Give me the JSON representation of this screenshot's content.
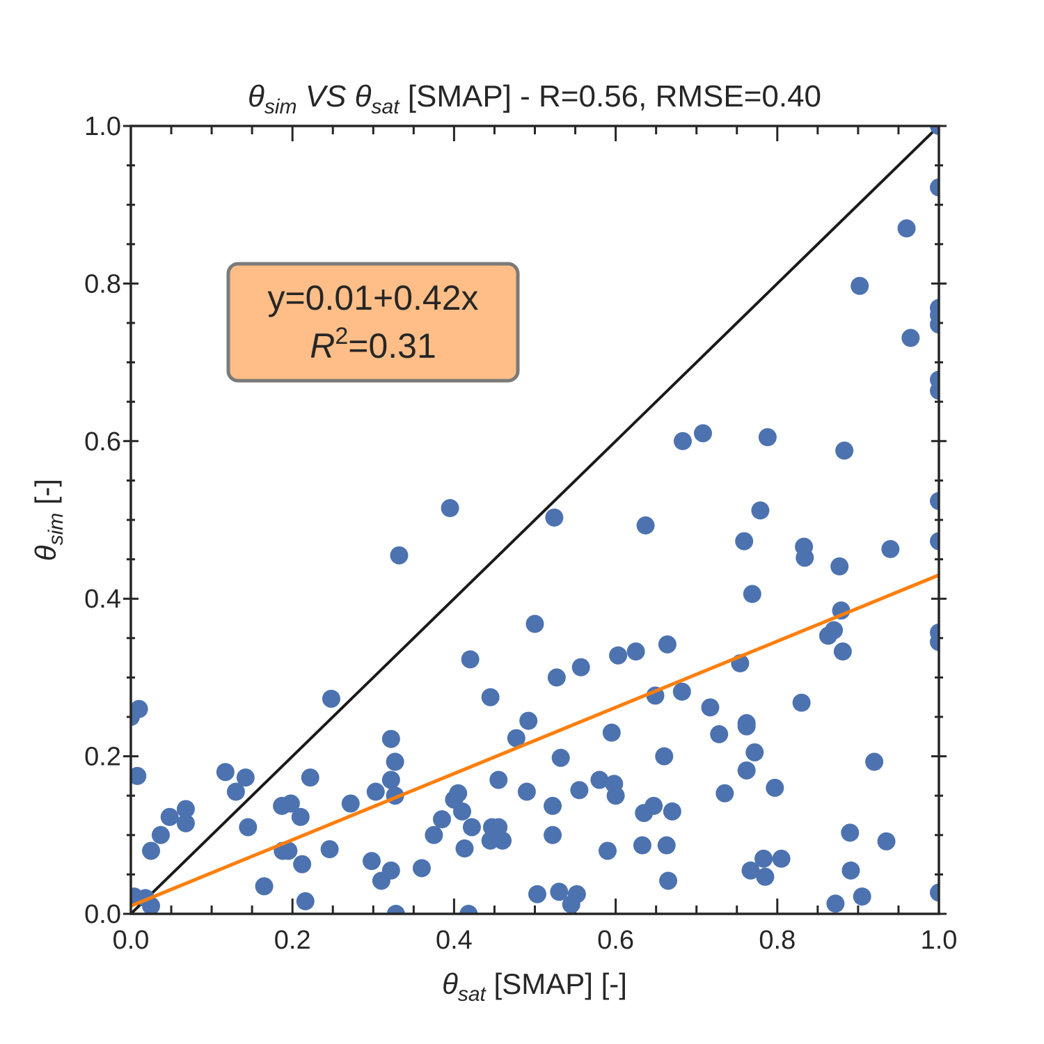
{
  "chart_data": {
    "type": "scatter",
    "title": {
      "y_symbol": "θ",
      "y_sub": "sim",
      "mid": " VS ",
      "x_symbol": "θ",
      "x_sub": "sat",
      "rest": " [SMAP] - R=0.56, RMSE=0.40"
    },
    "xlabel": {
      "symbol": "θ",
      "sub": "sat",
      "rest": " [SMAP] [-]"
    },
    "ylabel": {
      "symbol": "θ",
      "sub": "sim",
      "rest": " [-]"
    },
    "xlim": [
      0.0,
      1.0
    ],
    "ylim": [
      0.0,
      1.0
    ],
    "xticks": [
      "0.0",
      "0.2",
      "0.4",
      "0.6",
      "0.8",
      "1.0"
    ],
    "yticks": [
      "0.0",
      "0.2",
      "0.4",
      "0.6",
      "0.8",
      "1.0"
    ],
    "grid": false,
    "colors": {
      "points": "#4c72b0",
      "fit_line": "#ff7f0e",
      "identity_line": "#1a1a1a",
      "box_fill": "#ffbe87",
      "box_edge": "#7a7a7a"
    },
    "identity_line": {
      "from": [
        0,
        0
      ],
      "to": [
        1,
        1
      ]
    },
    "fit_line": {
      "intercept": 0.01,
      "slope": 0.42
    },
    "annotation": {
      "line1": "y=0.01+0.42x",
      "line2_symbol": "R",
      "line2_sup": "2",
      "line2_rest": "=0.31"
    },
    "points": [
      [
        0.0,
        0.25
      ],
      [
        0.008,
        0.175
      ],
      [
        0.01,
        0.26
      ],
      [
        0.004,
        0.022
      ],
      [
        0.018,
        0.02
      ],
      [
        0.025,
        0.01
      ],
      [
        0.025,
        0.08
      ],
      [
        0.037,
        0.1
      ],
      [
        0.048,
        0.123
      ],
      [
        0.068,
        0.133
      ],
      [
        0.068,
        0.115
      ],
      [
        0.117,
        0.18
      ],
      [
        0.13,
        0.155
      ],
      [
        0.142,
        0.173
      ],
      [
        0.145,
        0.11
      ],
      [
        0.165,
        0.035
      ],
      [
        0.187,
        0.137
      ],
      [
        0.188,
        0.08
      ],
      [
        0.195,
        0.08
      ],
      [
        0.198,
        0.14
      ],
      [
        0.21,
        0.123
      ],
      [
        0.212,
        0.063
      ],
      [
        0.216,
        0.016
      ],
      [
        0.222,
        0.173
      ],
      [
        0.246,
        0.082
      ],
      [
        0.248,
        0.273
      ],
      [
        0.272,
        0.14
      ],
      [
        0.298,
        0.067
      ],
      [
        0.303,
        0.155
      ],
      [
        0.31,
        0.042
      ],
      [
        0.322,
        0.055
      ],
      [
        0.322,
        0.222
      ],
      [
        0.322,
        0.17
      ],
      [
        0.327,
        0.193
      ],
      [
        0.327,
        0.15
      ],
      [
        0.328,
        0.0
      ],
      [
        0.332,
        0.455
      ],
      [
        0.36,
        0.058
      ],
      [
        0.375,
        0.1
      ],
      [
        0.385,
        0.12
      ],
      [
        0.395,
        0.515
      ],
      [
        0.4,
        0.145
      ],
      [
        0.405,
        0.153
      ],
      [
        0.41,
        0.13
      ],
      [
        0.413,
        0.083
      ],
      [
        0.418,
        0.0
      ],
      [
        0.42,
        0.323
      ],
      [
        0.422,
        0.11
      ],
      [
        0.445,
        0.275
      ],
      [
        0.445,
        0.093
      ],
      [
        0.447,
        0.11
      ],
      [
        0.455,
        0.17
      ],
      [
        0.455,
        0.11
      ],
      [
        0.46,
        0.093
      ],
      [
        0.477,
        0.223
      ],
      [
        0.49,
        0.155
      ],
      [
        0.492,
        0.245
      ],
      [
        0.5,
        0.368
      ],
      [
        0.503,
        0.025
      ],
      [
        0.522,
        0.137
      ],
      [
        0.522,
        0.1
      ],
      [
        0.524,
        0.503
      ],
      [
        0.527,
        0.3
      ],
      [
        0.53,
        0.028
      ],
      [
        0.532,
        0.198
      ],
      [
        0.545,
        0.012
      ],
      [
        0.552,
        0.025
      ],
      [
        0.555,
        0.157
      ],
      [
        0.557,
        0.313
      ],
      [
        0.58,
        0.17
      ],
      [
        0.59,
        0.08
      ],
      [
        0.595,
        0.23
      ],
      [
        0.598,
        0.165
      ],
      [
        0.6,
        0.15
      ],
      [
        0.603,
        0.328
      ],
      [
        0.625,
        0.333
      ],
      [
        0.633,
        0.087
      ],
      [
        0.635,
        0.128
      ],
      [
        0.637,
        0.493
      ],
      [
        0.647,
        0.137
      ],
      [
        0.649,
        0.277
      ],
      [
        0.66,
        0.2
      ],
      [
        0.663,
        0.087
      ],
      [
        0.664,
        0.342
      ],
      [
        0.665,
        0.042
      ],
      [
        0.67,
        0.13
      ],
      [
        0.682,
        0.282
      ],
      [
        0.683,
        0.6
      ],
      [
        0.708,
        0.61
      ],
      [
        0.717,
        0.262
      ],
      [
        0.728,
        0.228
      ],
      [
        0.735,
        0.153
      ],
      [
        0.754,
        0.318
      ],
      [
        0.759,
        0.473
      ],
      [
        0.762,
        0.242
      ],
      [
        0.762,
        0.238
      ],
      [
        0.762,
        0.182
      ],
      [
        0.767,
        0.055
      ],
      [
        0.769,
        0.406
      ],
      [
        0.772,
        0.205
      ],
      [
        0.779,
        0.512
      ],
      [
        0.783,
        0.07
      ],
      [
        0.785,
        0.047
      ],
      [
        0.788,
        0.605
      ],
      [
        0.797,
        0.16
      ],
      [
        0.805,
        0.07
      ],
      [
        0.83,
        0.268
      ],
      [
        0.833,
        0.466
      ],
      [
        0.834,
        0.452
      ],
      [
        0.863,
        0.353
      ],
      [
        0.87,
        0.36
      ],
      [
        0.872,
        0.013
      ],
      [
        0.877,
        0.441
      ],
      [
        0.879,
        0.385
      ],
      [
        0.881,
        0.333
      ],
      [
        0.883,
        0.588
      ],
      [
        0.89,
        0.103
      ],
      [
        0.891,
        0.055
      ],
      [
        0.902,
        0.797
      ],
      [
        0.905,
        0.022
      ],
      [
        0.92,
        0.193
      ],
      [
        0.935,
        0.092
      ],
      [
        0.94,
        0.463
      ],
      [
        0.96,
        0.87
      ],
      [
        0.965,
        0.731
      ],
      [
        1.0,
        1.0
      ],
      [
        1.0,
        0.922
      ],
      [
        1.0,
        0.769
      ],
      [
        1.0,
        0.76
      ],
      [
        1.0,
        0.748
      ],
      [
        1.0,
        0.678
      ],
      [
        1.0,
        0.664
      ],
      [
        1.0,
        0.524
      ],
      [
        1.0,
        0.473
      ],
      [
        1.0,
        0.357
      ],
      [
        1.0,
        0.345
      ],
      [
        1.0,
        0.027
      ]
    ]
  }
}
